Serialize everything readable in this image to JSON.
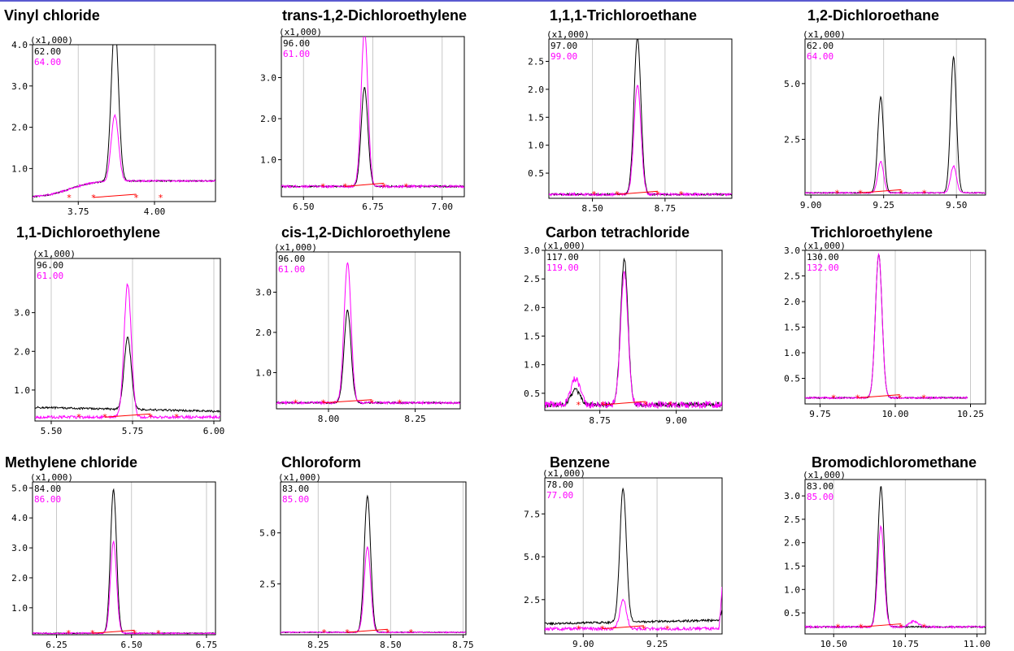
{
  "scale_label": "(x1,000)",
  "colors": {
    "primary": "#000000",
    "secondary": "#ff00ff",
    "baseline": "#ff0000",
    "grid": "#c8c8c8"
  },
  "chart_data": [
    {
      "type": "line",
      "title": "Vinyl chloride",
      "mz": [
        "62.00",
        "64.00"
      ],
      "xlim": [
        3.6,
        4.2
      ],
      "ylim": [
        0.2,
        4.0
      ],
      "xticks": [
        3.75,
        4.0
      ],
      "xtick_labels": [
        "3.75",
        "4.00"
      ],
      "yticks": [
        1.0,
        2.0,
        3.0,
        4.0
      ],
      "ytick_labels": [
        "1.0",
        "2.0",
        "3.0",
        "4.0"
      ],
      "peaks": [
        {
          "center": 3.87,
          "sigma": 0.012,
          "heights": [
            3.8,
            1.6
          ]
        }
      ],
      "base_start": 0.3,
      "base_end": 0.7,
      "base_step": 3.72,
      "base_step_width": 0.04,
      "noise": 0.015
    },
    {
      "type": "line",
      "title": "trans-1,2-Dichloroethylene",
      "mz": [
        "96.00",
        "61.00"
      ],
      "xlim": [
        6.42,
        7.08
      ],
      "ylim": [
        0.1,
        4.0
      ],
      "xticks": [
        6.5,
        6.75,
        7.0
      ],
      "xtick_labels": [
        "6.50",
        "6.75",
        "7.00"
      ],
      "yticks": [
        1.0,
        2.0,
        3.0
      ],
      "ytick_labels": [
        "1.0",
        "2.0",
        "3.0"
      ],
      "peaks": [
        {
          "center": 6.72,
          "sigma": 0.012,
          "heights": [
            2.4,
            3.8
          ]
        }
      ],
      "base_start": 0.35,
      "base_end": 0.35,
      "noise": 0.02
    },
    {
      "type": "line",
      "title": "1,1,1-Trichloroethane",
      "mz": [
        "97.00",
        "99.00"
      ],
      "xlim": [
        8.35,
        8.98
      ],
      "ylim": [
        0.05,
        2.9
      ],
      "xticks": [
        8.5,
        8.75
      ],
      "xtick_labels": [
        "8.50",
        "8.75"
      ],
      "yticks": [
        0.5,
        1.0,
        1.5,
        2.0,
        2.5
      ],
      "ytick_labels": [
        "0.5",
        "1.0",
        "1.5",
        "2.0",
        "2.5"
      ],
      "peaks": [
        {
          "center": 8.655,
          "sigma": 0.012,
          "heights": [
            2.8,
            1.95
          ]
        }
      ],
      "base_start": 0.12,
      "base_end": 0.12,
      "noise": 0.015
    },
    {
      "type": "line",
      "title": "1,2-Dichloroethane",
      "mz": [
        "62.00",
        "64.00"
      ],
      "xlim": [
        8.98,
        9.6
      ],
      "ylim": [
        0.0,
        7.0
      ],
      "xticks": [
        9.0,
        9.25,
        9.5
      ],
      "xtick_labels": [
        "9.00",
        "9.25",
        "9.50"
      ],
      "yticks": [
        2.5,
        5.0
      ],
      "ytick_labels": [
        "2.5",
        "5.0"
      ],
      "peaks": [
        {
          "center": 9.24,
          "sigma": 0.01,
          "heights": [
            4.3,
            1.4
          ]
        },
        {
          "center": 9.49,
          "sigma": 0.01,
          "heights": [
            6.1,
            1.2
          ]
        }
      ],
      "base_start": 0.1,
      "base_end": 0.1,
      "noise": 0.02
    },
    {
      "type": "line",
      "title": "1,1-Dichloroethylene",
      "mz": [
        "96.00",
        "61.00"
      ],
      "xlim": [
        5.45,
        6.02
      ],
      "ylim": [
        0.2,
        4.4
      ],
      "xticks": [
        5.5,
        5.75,
        6.0
      ],
      "xtick_labels": [
        "5.50",
        "5.75",
        "6.00"
      ],
      "yticks": [
        1.0,
        2.0,
        3.0
      ],
      "ytick_labels": [
        "1.0",
        "2.0",
        "3.0"
      ],
      "peaks": [
        {
          "center": 5.735,
          "sigma": 0.011,
          "heights": [
            1.85,
            3.45
          ]
        }
      ],
      "base_start": 0.55,
      "base_end": 0.45,
      "base2": 0.3,
      "noise": 0.025
    },
    {
      "type": "line",
      "title": "cis-1,2-Dichloroethylene",
      "mz": [
        "96.00",
        "61.00"
      ],
      "xlim": [
        7.85,
        8.38
      ],
      "ylim": [
        0.1,
        4.0
      ],
      "xticks": [
        8.0,
        8.25
      ],
      "xtick_labels": [
        "8.00",
        "8.25"
      ],
      "yticks": [
        1.0,
        2.0,
        3.0
      ],
      "ytick_labels": [
        "1.0",
        "2.0",
        "3.0"
      ],
      "peaks": [
        {
          "center": 8.055,
          "sigma": 0.01,
          "heights": [
            2.3,
            3.5
          ]
        }
      ],
      "base_start": 0.25,
      "base_end": 0.25,
      "noise": 0.02
    },
    {
      "type": "line",
      "title": "Carbon tetrachloride",
      "mz": [
        "117.00",
        "119.00"
      ],
      "xlim": [
        8.57,
        9.15
      ],
      "ylim": [
        0.2,
        3.0
      ],
      "xticks": [
        8.75,
        9.0
      ],
      "xtick_labels": [
        "8.75",
        "9.00"
      ],
      "yticks": [
        0.5,
        1.0,
        1.5,
        2.0,
        2.5,
        3.0
      ],
      "ytick_labels": [
        "0.5",
        "1.0",
        "1.5",
        "2.0",
        "2.5",
        "3.0"
      ],
      "peaks": [
        {
          "center": 8.83,
          "sigma": 0.012,
          "heights": [
            2.55,
            2.3
          ]
        },
        {
          "center": 8.67,
          "sigma": 0.015,
          "heights": [
            0.25,
            0.45
          ]
        }
      ],
      "base_start": 0.3,
      "base_end": 0.3,
      "noise": 0.04
    },
    {
      "type": "line",
      "title": "Trichloroethylene",
      "mz": [
        "130.00",
        "132.00"
      ],
      "xlim": [
        9.7,
        10.3
      ],
      "ylim": [
        0.0,
        3.0
      ],
      "xticks": [
        9.75,
        10.0,
        10.25
      ],
      "xtick_labels": [
        "9.75",
        "10.00",
        "10.25"
      ],
      "yticks": [
        0.5,
        1.0,
        1.5,
        2.0,
        2.5,
        3.0
      ],
      "ytick_labels": [
        "0.5",
        "1.0",
        "1.5",
        "2.0",
        "2.5",
        "3.0"
      ],
      "peaks": [
        {
          "center": 9.945,
          "sigma": 0.011,
          "heights": [
            2.8,
            2.8
          ]
        }
      ],
      "base_start": 0.12,
      "base_end": 0.12,
      "noise": 0.012,
      "xmax_data": 10.24
    },
    {
      "type": "line",
      "title": "Methylene chloride",
      "mz": [
        "84.00",
        "86.00"
      ],
      "xlim": [
        6.17,
        6.78
      ],
      "ylim": [
        0.1,
        5.2
      ],
      "xticks": [
        6.25,
        6.5,
        6.75
      ],
      "xtick_labels": [
        "6.25",
        "6.50",
        "6.75"
      ],
      "yticks": [
        1.0,
        2.0,
        3.0,
        4.0,
        5.0
      ],
      "ytick_labels": [
        "1.0",
        "2.0",
        "3.0",
        "4.0",
        "5.0"
      ],
      "peaks": [
        {
          "center": 6.44,
          "sigma": 0.01,
          "heights": [
            4.8,
            3.05
          ]
        }
      ],
      "base_start": 0.15,
      "base_end": 0.15,
      "noise": 0.015
    },
    {
      "type": "line",
      "title": "Chloroform",
      "mz": [
        "83.00",
        "85.00"
      ],
      "xlim": [
        8.12,
        8.76
      ],
      "ylim": [
        0.0,
        7.5
      ],
      "xticks": [
        8.25,
        8.5,
        8.75
      ],
      "xtick_labels": [
        "8.25",
        "8.50",
        "8.75"
      ],
      "yticks": [
        2.5,
        5.0
      ],
      "ytick_labels": [
        "2.5",
        "5.0"
      ],
      "peaks": [
        {
          "center": 8.42,
          "sigma": 0.011,
          "heights": [
            6.7,
            4.2
          ]
        }
      ],
      "base_start": 0.12,
      "base_end": 0.12,
      "noise": 0.02
    },
    {
      "type": "line",
      "title": "Benzene",
      "mz": [
        "78.00",
        "77.00"
      ],
      "xlim": [
        8.87,
        9.47
      ],
      "ylim": [
        0.5,
        9.6
      ],
      "xticks": [
        9.0,
        9.25
      ],
      "xtick_labels": [
        "9.00",
        "9.25"
      ],
      "yticks": [
        2.5,
        5.0,
        7.5
      ],
      "ytick_labels": [
        "2.5",
        "5.0",
        "7.5"
      ],
      "peaks": [
        {
          "center": 9.135,
          "sigma": 0.011,
          "heights": [
            7.8,
            1.7
          ]
        }
      ],
      "base_start": 1.1,
      "base_end": 1.3,
      "base2": 0.8,
      "noise": 0.06,
      "rise_end": true
    },
    {
      "type": "line",
      "title": "Bromodichloromethane",
      "mz": [
        "83.00",
        "85.00"
      ],
      "xlim": [
        10.4,
        11.03
      ],
      "ylim": [
        0.05,
        3.35
      ],
      "xticks": [
        10.5,
        10.75,
        11.0
      ],
      "xtick_labels": [
        "10.50",
        "10.75",
        "11.00"
      ],
      "yticks": [
        0.5,
        1.0,
        1.5,
        2.0,
        2.5,
        3.0
      ],
      "ytick_labels": [
        "0.5",
        "1.0",
        "1.5",
        "2.0",
        "2.5",
        "3.0"
      ],
      "peaks": [
        {
          "center": 10.665,
          "sigma": 0.011,
          "heights": [
            3.0,
            2.15
          ]
        },
        {
          "center": 10.78,
          "sigma": 0.015,
          "heights": [
            0.0,
            0.12
          ]
        }
      ],
      "base_start": 0.2,
      "base_end": 0.2,
      "noise": 0.015
    }
  ]
}
